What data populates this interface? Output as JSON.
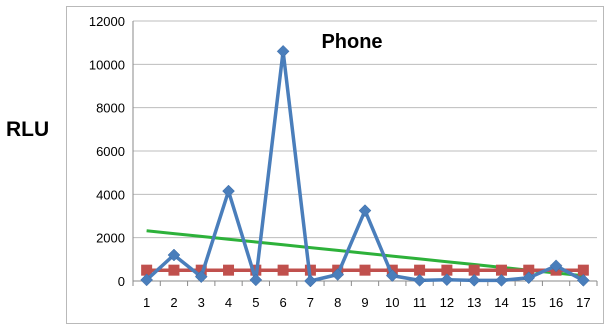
{
  "chart_data": {
    "type": "line",
    "title": "Phone",
    "xlabel": "",
    "ylabel": "RLU",
    "categories": [
      "1",
      "2",
      "3",
      "4",
      "5",
      "6",
      "7",
      "8",
      "9",
      "10",
      "11",
      "12",
      "13",
      "14",
      "15",
      "16",
      "17"
    ],
    "ylim": [
      0,
      12000
    ],
    "yticks": [
      0,
      2000,
      4000,
      6000,
      8000,
      10000,
      12000
    ],
    "grid": true,
    "series": [
      {
        "values": [
          50,
          1200,
          200,
          4150,
          50,
          10600,
          0,
          300,
          3250,
          250,
          30,
          60,
          30,
          30,
          150,
          700,
          30
        ],
        "color": "#4a7ebb",
        "marker": "diamond"
      },
      {
        "values": [
          500,
          500,
          500,
          500,
          500,
          500,
          500,
          500,
          500,
          500,
          500,
          500,
          500,
          500,
          500,
          500,
          500
        ],
        "color": "#c0504d",
        "marker": "square"
      },
      {
        "values": [
          2320,
          2190,
          2060,
          1930,
          1800,
          1670,
          1540,
          1410,
          1280,
          1150,
          1020,
          890,
          760,
          630,
          500,
          370,
          240
        ],
        "color": "#2db13a",
        "marker": "none"
      }
    ]
  }
}
